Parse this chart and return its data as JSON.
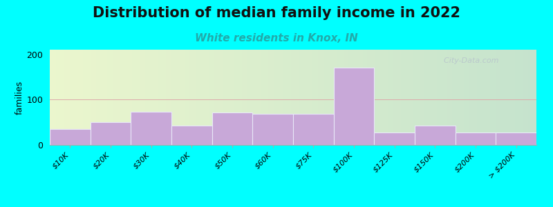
{
  "title": "Distribution of median family income in 2022",
  "subtitle": "White residents in Knox, IN",
  "ylabel": "families",
  "background_outer": "#00FFFF",
  "bar_color": "#c8a8d8",
  "bar_edge_color": "#e8e8f8",
  "categories": [
    "$10K",
    "$20K",
    "$30K",
    "$40K",
    "$50K",
    "$60K",
    "$75K",
    "$100K",
    "$125K",
    "$150K",
    "$200K",
    "> $200K"
  ],
  "values": [
    35,
    50,
    73,
    42,
    72,
    68,
    68,
    170,
    28,
    42,
    27,
    27
  ],
  "ylim": [
    0,
    210
  ],
  "yticks": [
    0,
    100,
    200
  ],
  "title_fontsize": 15,
  "subtitle_fontsize": 11,
  "subtitle_color": "#22aaaa",
  "watermark": "  City-Data.com",
  "bg_left_color": "#e8f5e0",
  "bg_right_color": "#f0f0e8"
}
